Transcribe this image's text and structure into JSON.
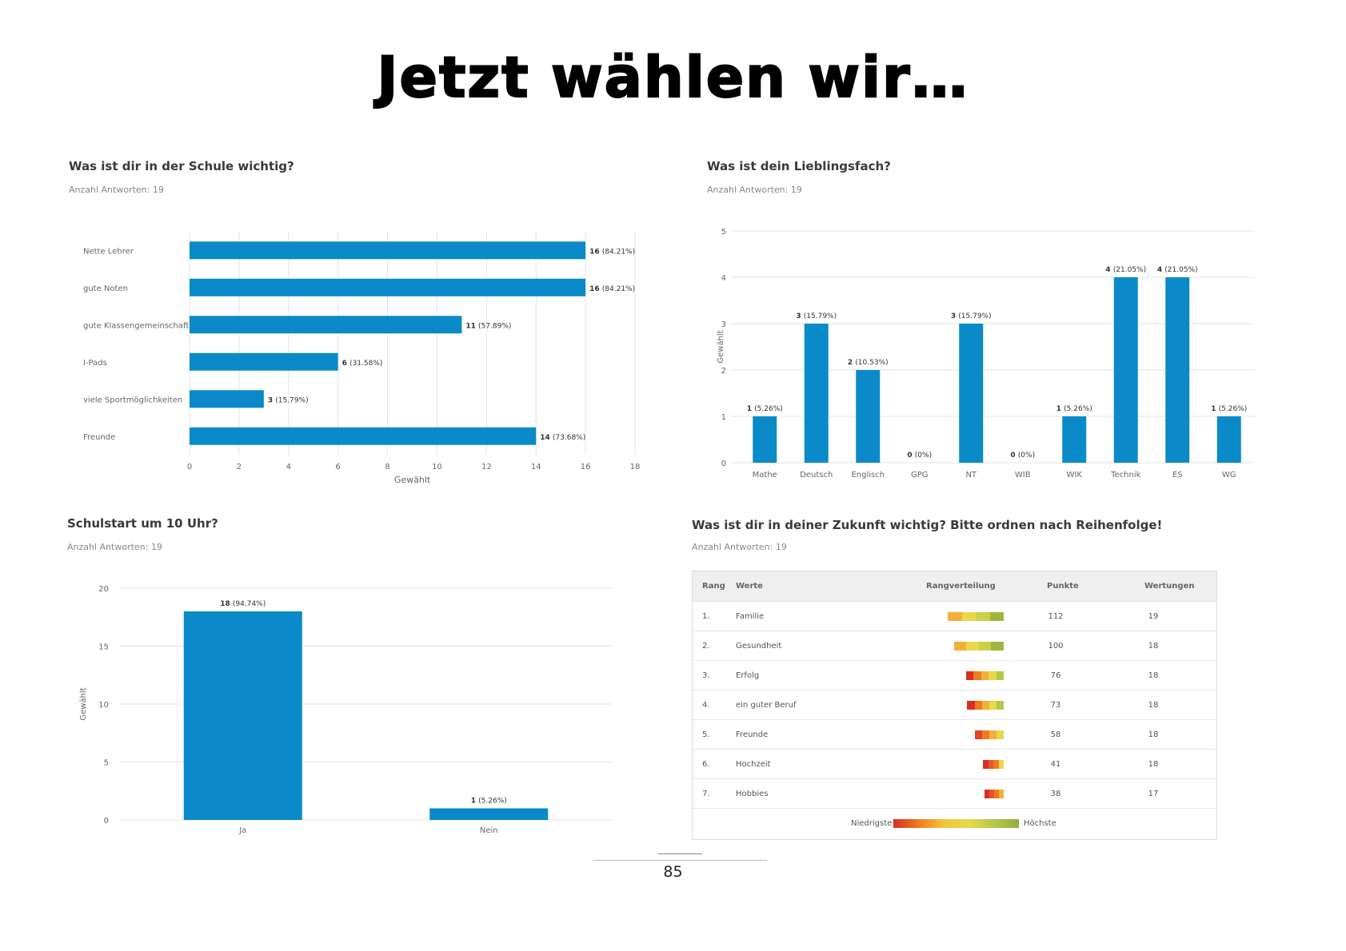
{
  "page_title": "Jetzt wählen wir…",
  "page_number": "85",
  "colors": {
    "bar": "#0a8ac8",
    "grid": "#e3e3e3",
    "axis_text": "#666666"
  },
  "panels": {
    "school": {
      "title": "Was ist dir in der Schule wichtig?",
      "subtitle": "Anzahl Antworten: 19"
    },
    "subject": {
      "title": "Was ist dein Lieblingsfach?",
      "subtitle": "Anzahl Antworten: 19"
    },
    "start": {
      "title": "Schulstart um 10 Uhr?",
      "subtitle": "Anzahl Antworten: 19"
    },
    "future": {
      "title": "Was ist dir in deiner Zukunft wichtig? Bitte ordnen nach Reihenfolge!",
      "subtitle": "Anzahl Antworten: 19"
    }
  },
  "chart_data": [
    {
      "type": "bar",
      "orientation": "horizontal",
      "title": "Was ist dir in der Schule wichtig?",
      "categories": [
        "Nette Lehrer",
        "gute Noten",
        "gute Klassengemeinschaft",
        "I-Pads",
        "viele Sportmöglichkeiten",
        "Freunde"
      ],
      "values": [
        16,
        16,
        11,
        6,
        3,
        14
      ],
      "percent_labels": [
        "(84.21%)",
        "(84.21%)",
        "(57.89%)",
        "(31.58%)",
        "(15.79%)",
        "(73.68%)"
      ],
      "xlabel": "Gewählt",
      "xlim": [
        0,
        18
      ],
      "xticks": [
        "0",
        "2",
        "4",
        "6",
        "8",
        "10",
        "12",
        "14",
        "16",
        "18"
      ],
      "grid": true
    },
    {
      "type": "bar",
      "orientation": "vertical",
      "title": "Was ist dein Lieblingsfach?",
      "categories": [
        "Mathe",
        "Deutsch",
        "Englisch",
        "GPG",
        "NT",
        "WIB",
        "WIK",
        "Technik",
        "ES",
        "WG"
      ],
      "values": [
        1,
        3,
        2,
        0,
        3,
        0,
        1,
        4,
        4,
        1
      ],
      "percent_labels": [
        "(5.26%)",
        "(15.79%)",
        "(10.53%)",
        "(0%)",
        "(15.79%)",
        "(0%)",
        "(5.26%)",
        "(21.05%)",
        "(21.05%)",
        "(5.26%)"
      ],
      "ylabel": "Gewählt",
      "ylim": [
        0,
        5
      ],
      "yticks": [
        "0",
        "1",
        "2",
        "3",
        "4",
        "5"
      ],
      "grid": true
    },
    {
      "type": "bar",
      "orientation": "vertical",
      "title": "Schulstart um 10 Uhr?",
      "categories": [
        "Ja",
        "Nein"
      ],
      "values": [
        18,
        1
      ],
      "percent_labels": [
        "(94.74%)",
        "(5.26%)"
      ],
      "ylabel": "Gewählt",
      "ylim": [
        0,
        20
      ],
      "yticks": [
        "0",
        "5",
        "10",
        "15",
        "20"
      ],
      "grid": true
    },
    {
      "type": "table",
      "title": "Was ist dir in deiner Zukunft wichtig? Bitte ordnen nach Reihenfolge!",
      "columns": [
        "Rang",
        "Werte",
        "Rangverteilung",
        "Punkte",
        "Wertungen"
      ],
      "rows": [
        {
          "rank": "1.",
          "value": "Familie",
          "points": "112",
          "votes": "19"
        },
        {
          "rank": "2.",
          "value": "Gesundheit",
          "points": "100",
          "votes": "18"
        },
        {
          "rank": "3.",
          "value": "Erfolg",
          "points": "76",
          "votes": "18"
        },
        {
          "rank": "4.",
          "value": "ein guter Beruf",
          "points": "73",
          "votes": "18"
        },
        {
          "rank": "5.",
          "value": "Freunde",
          "points": "58",
          "votes": "18"
        },
        {
          "rank": "6.",
          "value": "Hochzeit",
          "points": "41",
          "votes": "18"
        },
        {
          "rank": "7.",
          "value": "Hobbies",
          "points": "38",
          "votes": "17"
        }
      ],
      "distribution_colors": [
        [
          "#f2b03a",
          "#e8d84a",
          "#c8d24a",
          "#9db73c"
        ],
        [
          "#f2b03a",
          "#e8d84a",
          "#c8d24a",
          "#9db73c"
        ],
        [
          "#d73027",
          "#f07a1e",
          "#f2b03a",
          "#e8d84a",
          "#b5c84a"
        ],
        [
          "#d73027",
          "#f07a1e",
          "#f2b03a",
          "#e8d84a",
          "#b5c84a"
        ],
        [
          "#e0442a",
          "#f07a1e",
          "#f2b03a",
          "#e8d84a"
        ],
        [
          "#d73027",
          "#e8552a",
          "#f07a1e",
          "#e8d84a"
        ],
        [
          "#d73027",
          "#e8552a",
          "#f07a1e",
          "#f2b03a"
        ]
      ],
      "legend": {
        "low": "Niedrigste",
        "high": "Höchste"
      }
    }
  ]
}
